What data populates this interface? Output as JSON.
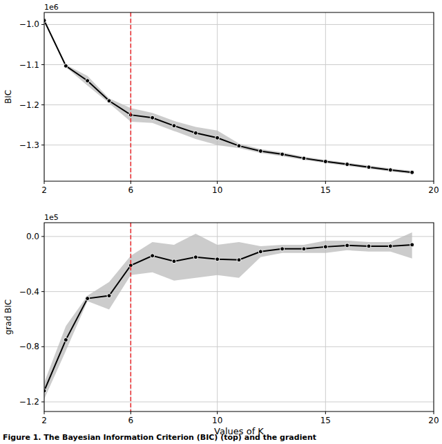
{
  "chart_data": [
    {
      "type": "line",
      "ylabel": "BIC",
      "annotation": "1e6",
      "x": [
        2,
        3,
        4,
        5,
        6,
        7,
        8,
        9,
        10,
        11,
        12,
        13,
        14,
        15,
        16,
        17,
        18,
        19
      ],
      "xlim": [
        2,
        20
      ],
      "xticks": [
        2,
        6,
        10,
        15,
        20
      ],
      "ylim": [
        -1.39,
        -0.97
      ],
      "yticks": [
        {
          "value": -1.0,
          "label": "−1.0"
        },
        {
          "value": -1.1,
          "label": "−1.1"
        },
        {
          "value": -1.2,
          "label": "−1.2"
        },
        {
          "value": -1.3,
          "label": "−1.3"
        }
      ],
      "grid": true,
      "marked_k": 6,
      "series": [
        {
          "color": "#000000",
          "marker": "circle",
          "values": [
            -0.99,
            -1.103,
            -1.14,
            -1.19,
            -1.225,
            -1.232,
            -1.252,
            -1.27,
            -1.282,
            -1.302,
            -1.315,
            -1.323,
            -1.333,
            -1.341,
            -1.348,
            -1.355,
            -1.362,
            -1.368
          ],
          "lower": [
            -0.993,
            -1.106,
            -1.152,
            -1.196,
            -1.242,
            -1.245,
            -1.265,
            -1.285,
            -1.3,
            -1.308,
            -1.32,
            -1.328,
            -1.337,
            -1.345,
            -1.352,
            -1.359,
            -1.366,
            -1.372
          ],
          "upper": [
            -0.987,
            -1.1,
            -1.128,
            -1.184,
            -1.208,
            -1.22,
            -1.24,
            -1.255,
            -1.264,
            -1.296,
            -1.31,
            -1.318,
            -1.329,
            -1.337,
            -1.344,
            -1.351,
            -1.358,
            -1.364
          ]
        }
      ]
    },
    {
      "type": "line",
      "ylabel": "grad BIC",
      "xlabel": "Values of K",
      "annotation": "1e5",
      "x": [
        2,
        3,
        4,
        5,
        6,
        7,
        8,
        9,
        10,
        11,
        12,
        13,
        14,
        15,
        16,
        17,
        18,
        19
      ],
      "xlim": [
        2,
        20
      ],
      "xticks": [
        2,
        6,
        10,
        15,
        20
      ],
      "ylim": [
        -1.27,
        0.1
      ],
      "yticks": [
        {
          "value": 0.0,
          "label": "0.0"
        },
        {
          "value": -0.4,
          "label": "−0.4"
        },
        {
          "value": -0.8,
          "label": "−0.8"
        },
        {
          "value": -1.2,
          "label": "−1.2"
        }
      ],
      "grid": true,
      "marked_k": 6,
      "series": [
        {
          "color": "#000000",
          "marker": "circle",
          "values": [
            -1.12,
            -0.75,
            -0.45,
            -0.43,
            -0.21,
            -0.14,
            -0.18,
            -0.15,
            -0.165,
            -0.17,
            -0.11,
            -0.09,
            -0.09,
            -0.075,
            -0.065,
            -0.07,
            -0.07,
            -0.06
          ],
          "lower": [
            -1.18,
            -0.83,
            -0.47,
            -0.53,
            -0.28,
            -0.26,
            -0.32,
            -0.3,
            -0.28,
            -0.3,
            -0.15,
            -0.12,
            -0.12,
            -0.12,
            -0.1,
            -0.11,
            -0.11,
            -0.16
          ],
          "upper": [
            -1.06,
            -0.65,
            -0.43,
            -0.33,
            -0.14,
            -0.04,
            -0.06,
            0.02,
            -0.06,
            -0.04,
            -0.07,
            -0.06,
            -0.06,
            -0.03,
            -0.03,
            -0.04,
            -0.04,
            0.03
          ]
        }
      ]
    }
  ],
  "caption": "Figure 1. The Bayesian Information Criterion (BIC) (top) and the gradient"
}
